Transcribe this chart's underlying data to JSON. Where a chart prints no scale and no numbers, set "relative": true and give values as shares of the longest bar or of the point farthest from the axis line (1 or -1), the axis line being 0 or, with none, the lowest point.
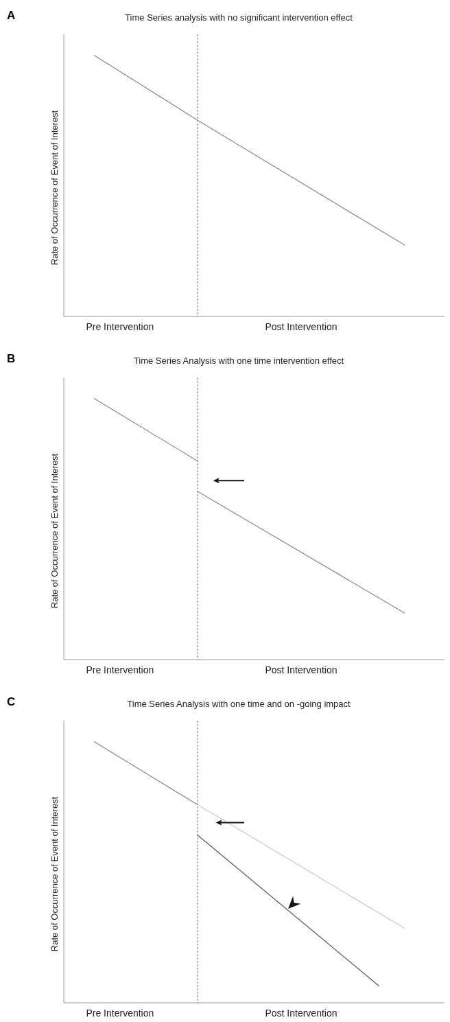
{
  "chart_data": [
    {
      "type": "line",
      "title": "Time Series analysis with no significant intervention effect",
      "ylabel": "Rate of Occurrence of Event of Interest",
      "annotations": [
        "A"
      ],
      "relative": true,
      "categories": [
        null,
        "Pre Intervention",
        null,
        null,
        null,
        null,
        null,
        null,
        "Post Intervention",
        null,
        null,
        null,
        null
      ],
      "series": [
        {
          "color": "#888888",
          "values": [
            1,
            null,
            null,
            null,
            0.751,
            null,
            null,
            null,
            null,
            null,
            null,
            null,
            0.273
          ]
        }
      ]
    },
    {
      "type": "line",
      "title": "Time Series Analysis with one time intervention effect",
      "ylabel": "Rate of Occurrence of Event of Interest",
      "annotations": [
        "B"
      ],
      "relative": true,
      "categories": [
        null,
        "Pre Intervention",
        null,
        null,
        null,
        null,
        null,
        null,
        "Post Intervention",
        null,
        null,
        null,
        null
      ],
      "series": [
        {
          "color": "#888888",
          "values": [
            1,
            null,
            null,
            null,
            0.76,
            null,
            null,
            null,
            null,
            null,
            null,
            null,
            null
          ]
        },
        {
          "color": "#888888",
          "values": [
            null,
            null,
            null,
            null,
            0.644,
            null,
            null,
            null,
            null,
            null,
            null,
            null,
            0.178
          ]
        }
      ]
    },
    {
      "type": "line",
      "title": "Time Series Analysis with one time and on   -going impact",
      "ylabel": "Rate of Occurrence of Event of Interest",
      "annotations": [
        "C"
      ],
      "relative": true,
      "categories": [
        null,
        "Pre Intervention",
        null,
        null,
        null,
        null,
        null,
        null,
        "Post Intervention",
        null,
        null,
        null,
        null
      ],
      "series": [
        {
          "color": "#888888",
          "values": [
            1,
            null,
            null,
            null,
            0.758,
            null,
            null,
            null,
            null,
            null,
            null,
            null,
            null
          ]
        },
        {
          "color": "#c8c8c8",
          "values": [
            null,
            null,
            null,
            null,
            0.758,
            null,
            null,
            null,
            null,
            null,
            null,
            null,
            0.285
          ]
        },
        {
          "color": "#555555",
          "values": [
            null,
            null,
            null,
            null,
            0.642,
            null,
            null,
            null,
            null,
            null,
            null,
            0.065,
            null
          ]
        }
      ]
    }
  ]
}
